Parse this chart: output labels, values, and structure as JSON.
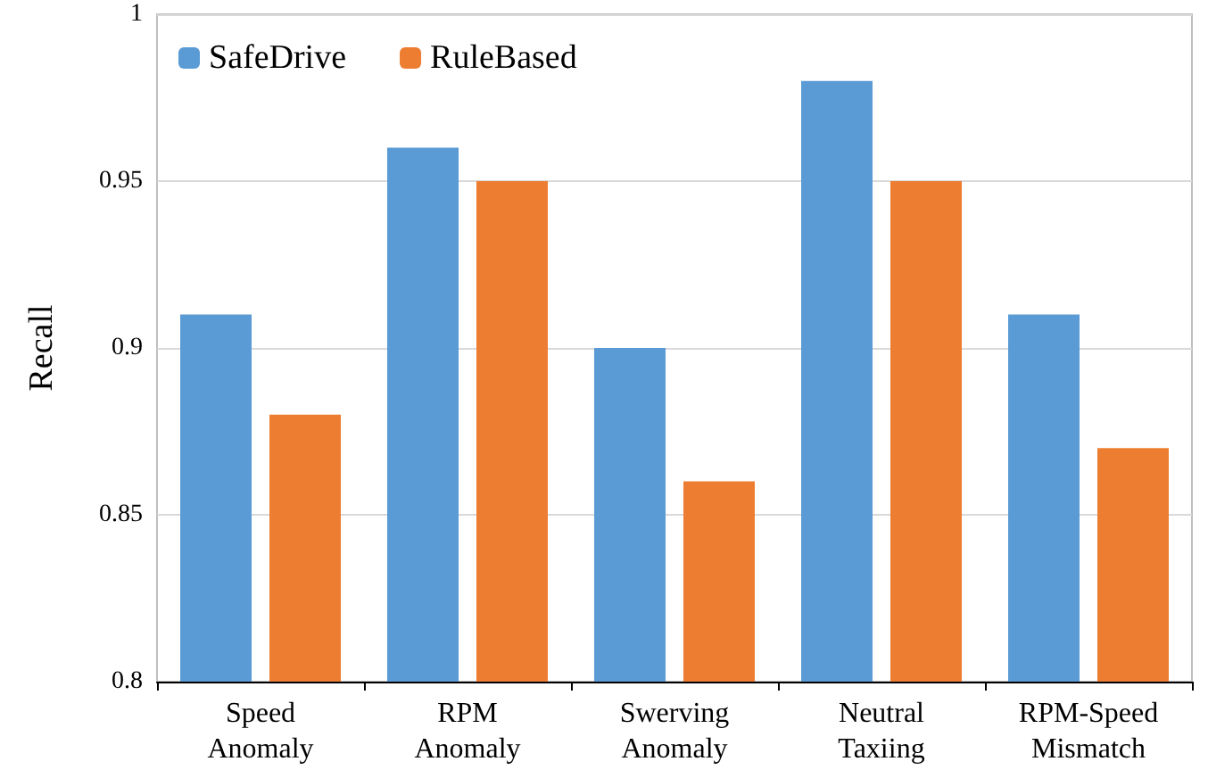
{
  "chart_data": {
    "type": "bar",
    "ylabel": "Recall",
    "categories": [
      "Speed\nAnomaly",
      "RPM\nAnomaly",
      "Swerving\nAnomaly",
      "Neutral\nTaxiing",
      "RPM-Speed\nMismatch"
    ],
    "series": [
      {
        "name": "SafeDrive",
        "color": "#5b9bd5",
        "values": [
          0.91,
          0.96,
          0.9,
          0.98,
          0.91
        ]
      },
      {
        "name": "RuleBased",
        "color": "#ed7d31",
        "values": [
          0.88,
          0.95,
          0.86,
          0.95,
          0.87
        ]
      }
    ],
    "ylim": [
      0.8,
      1
    ],
    "yticks": [
      0.8,
      0.85,
      0.9,
      0.95,
      1
    ],
    "grid": "y",
    "legend": "top left"
  }
}
